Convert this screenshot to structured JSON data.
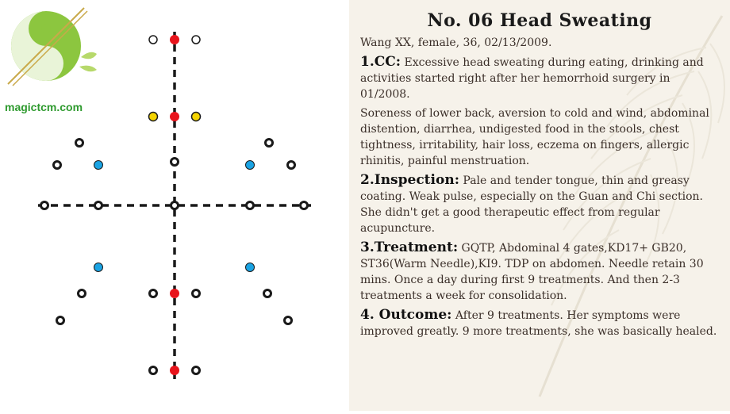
{
  "brand": {
    "site": "magictcm.com"
  },
  "colors": {
    "red": "#e8141c",
    "yellow": "#f4d400",
    "blue": "#1aa3e3",
    "open": "#ffffff",
    "line": "#1a1a1a",
    "brand": "#2e9a2e"
  },
  "case": {
    "title": "No. 06 Head Sweating",
    "patient": "Wang XX, female, 36, 02/13/2009.",
    "cc_heading": "1.CC:",
    "cc_text": "Excessive head sweating during eating, drinking and activities started right after her hemorrhoid surgery in 01/2008.",
    "cc_more": "Soreness of lower back, aversion to cold and wind, abdominal distention, diarrhea, undigested food in the stools, chest tightness, irritability, hair loss, eczema on fingers, allergic rhinitis, painful menstruation.",
    "inspection_heading": "2.Inspection:",
    "inspection_text": "Pale and tender tongue, thin and greasy coating. Weak pulse, especially on the Guan and Chi section. She didn't get a good therapeutic effect from regular acupuncture.",
    "treatment_heading": "3.Treatment:",
    "treatment_text": "GQTP, Abdominal 4 gates,KD17+ GB20, ST36(Warm Needle),KI9. TDP on abdomen. Needle retain 30 mins. Once a day during first 9 treatments. And then 2-3 treatments a week for consolidation.",
    "outcome_heading": "4. Outcome:",
    "outcome_text": "After 9 treatments. Her symptoms were improved greatly. 9 more treatments, she was basically healed."
  }
}
